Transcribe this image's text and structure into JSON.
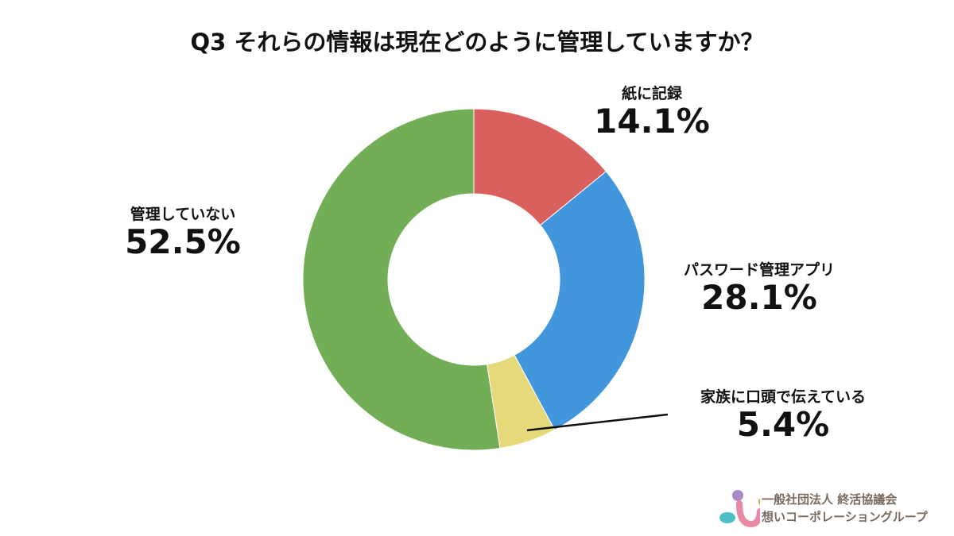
{
  "chart_data": {
    "type": "pie",
    "donut": true,
    "title": "Q3 それらの情報は現在どのように管理していますか？",
    "slices": [
      {
        "label": "紙に記録",
        "value": 14.1,
        "display": "14.1%",
        "color": "#d9605c"
      },
      {
        "label": "パスワード管理アプリ",
        "value": 28.1,
        "display": "28.1%",
        "color": "#4196dc"
      },
      {
        "label": "家族に口頭で伝えている",
        "value": 5.4,
        "display": "5.4%",
        "color": "#e5d97a"
      },
      {
        "label": "管理していない",
        "value": 52.5,
        "display": "52.5%",
        "color": "#72ae56"
      }
    ],
    "start": "top",
    "direction": "clockwise"
  },
  "logo": {
    "line1": "一般社団法人 終活協議会",
    "line2": "想いコーポレーショングループ"
  }
}
